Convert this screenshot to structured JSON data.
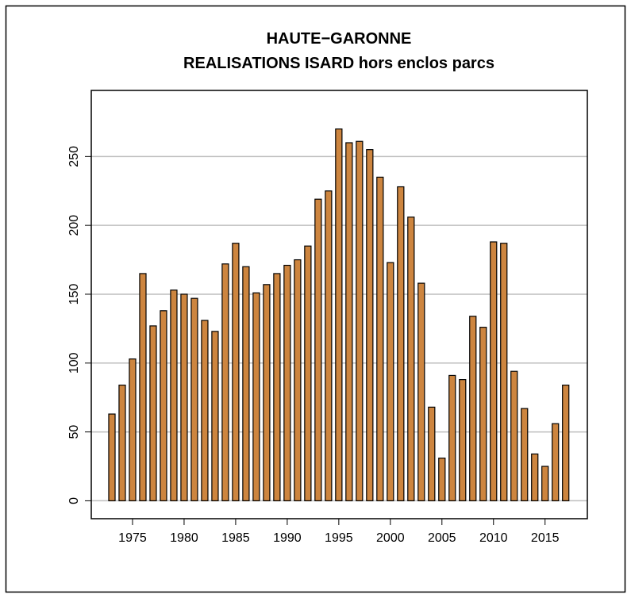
{
  "chart_data": {
    "type": "bar",
    "title": "HAUTE−GARONNE",
    "subtitle": "REALISATIONS ISARD hors enclos parcs",
    "x": [
      1973,
      1974,
      1975,
      1976,
      1977,
      1978,
      1979,
      1980,
      1981,
      1982,
      1983,
      1984,
      1985,
      1986,
      1987,
      1988,
      1989,
      1990,
      1991,
      1992,
      1993,
      1994,
      1995,
      1996,
      1997,
      1998,
      1999,
      2000,
      2001,
      2002,
      2003,
      2004,
      2005,
      2006,
      2007,
      2008,
      2009,
      2010,
      2011,
      2012,
      2013,
      2014,
      2015,
      2016,
      2017
    ],
    "values": [
      63,
      84,
      103,
      165,
      127,
      138,
      153,
      150,
      147,
      131,
      123,
      172,
      187,
      170,
      151,
      157,
      165,
      171,
      175,
      185,
      219,
      225,
      270,
      260,
      261,
      255,
      235,
      173,
      228,
      206,
      158,
      68,
      31,
      91,
      88,
      134,
      126,
      188,
      187,
      94,
      67,
      34,
      25,
      56,
      84
    ],
    "color": "#cd853f",
    "xlim": [
      1971,
      2019.1
    ],
    "xticks": [
      1975,
      1980,
      1985,
      1990,
      1995,
      2000,
      2005,
      2010,
      2015
    ],
    "ylim": [
      -13,
      298
    ],
    "yticks": [
      0,
      50,
      100,
      150,
      200,
      250
    ],
    "grid": true
  }
}
